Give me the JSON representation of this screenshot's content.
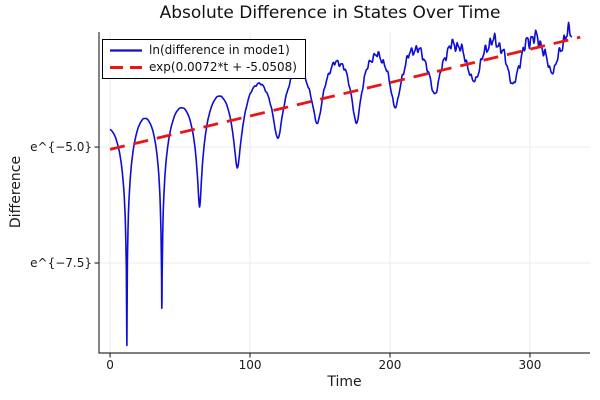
{
  "chart_data": {
    "type": "line",
    "title": "Absolute Difference in States Over Time",
    "xlabel": "Time",
    "ylabel": "Difference",
    "x_ticks": [
      {
        "value": 0,
        "label": "0"
      },
      {
        "value": 100,
        "label": "100"
      },
      {
        "value": 200,
        "label": "200"
      },
      {
        "value": 300,
        "label": "300"
      }
    ],
    "y_ticks": [
      {
        "value": -5.0,
        "label": "e^{−5.0}"
      },
      {
        "value": -7.5,
        "label": "e^{−7.5}"
      }
    ],
    "xlim": [
      -7.9,
      342.9
    ],
    "ylim": [
      -9.44,
      -2.52
    ],
    "y_scale": "natural-log (values are ln of difference)",
    "grid": true,
    "legend_position": "top-left",
    "background": "#ffffff",
    "axis_color": "#333333",
    "grid_color": "#ebebeb",
    "series": [
      {
        "name": "ln(difference in mode1)",
        "color": "#0d0dd6",
        "style": "solid",
        "width": 1.6,
        "model": {
          "trend": {
            "slope": 0.0072,
            "intercept": -5.0508
          },
          "t_start": 0,
          "t_end": 330,
          "hump_offset_points": [
            [
              0,
              0.45
            ],
            [
              120,
              0.65
            ],
            [
              170,
              0.68
            ],
            [
              230,
              0.5
            ],
            [
              260,
              0.33
            ],
            [
              300,
              0.15
            ],
            [
              330,
              0.05
            ]
          ],
          "pre_dip": {
            "t": -15.7,
            "depth": 4.5
          },
          "post_dip": {
            "t": 344,
            "depth": 0.6
          },
          "dips": [
            {
              "t": 12,
              "depth": 4.31
            },
            {
              "t": 37,
              "depth": 3.69
            },
            {
              "t": 64,
              "depth": 1.7
            },
            {
              "t": 91,
              "depth": 1.05
            },
            {
              "t": 120,
              "depth": 0.62
            },
            {
              "t": 148,
              "depth": 0.5
            },
            {
              "t": 176,
              "depth": 0.72
            },
            {
              "t": 204,
              "depth": 0.56
            },
            {
              "t": 232,
              "depth": 0.47
            },
            {
              "t": 260,
              "depth": 0.4
            },
            {
              "t": 288,
              "depth": 0.68
            },
            {
              "t": 316,
              "depth": 0.6
            }
          ],
          "noise": {
            "base_amp": 0.008,
            "max_amp": 0.24,
            "onset": 80,
            "ramp": 250,
            "f1": 1.9,
            "f2": 0.83,
            "f3": 3.7
          }
        }
      },
      {
        "name": "exp(0.0072*t + -5.0508)",
        "color": "#e81616",
        "style": "dashed",
        "width": 2.8,
        "model": {
          "slope": 0.0072,
          "intercept": -5.0508,
          "t_start": 0,
          "t_end": 336
        }
      }
    ]
  }
}
